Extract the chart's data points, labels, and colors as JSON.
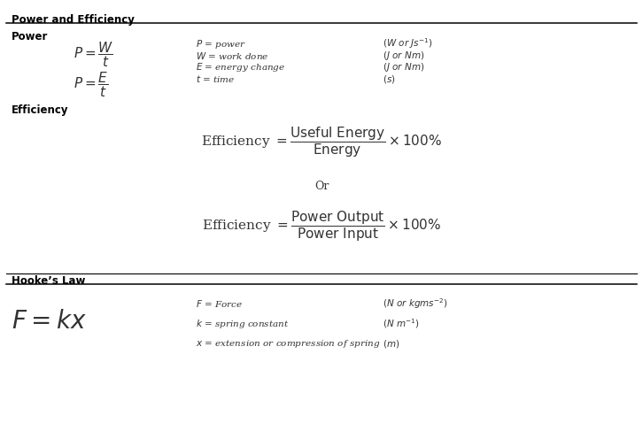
{
  "bg_color": "#ffffff",
  "text_color": "#333333",
  "bold_color": "#000000",
  "figsize": [
    7.26,
    4.96
  ],
  "dpi": 100,
  "section1_title": "Power and Efficiency",
  "section2_title": "Power",
  "section3_title": "Efficiency",
  "section4_title": "Hooke’s Law",
  "power_formula1": "$P = \\dfrac{W}{t}$",
  "power_formula2": "$P = \\dfrac{E}{t}$",
  "power_defs": [
    [
      "$P$ = power",
      "$(W\\ or\\ Js^{-1})$"
    ],
    [
      "$W$ = work done",
      "$(J\\ or\\ Nm)$"
    ],
    [
      "$E$ = energy change",
      "$(J\\ or\\ Nm)$"
    ],
    [
      "$t$ = time",
      "$(s)$"
    ]
  ],
  "eff_formula1": "Efficiency $= \\dfrac{\\mathrm{Useful\\ Energy}}{\\mathrm{Energy}} \\times100\\%$",
  "eff_or": "Or",
  "eff_formula2": "Efficiency $= \\dfrac{\\mathrm{Power\\ Output}}{\\mathrm{Power\\ Input}} \\times100\\%$",
  "hooke_formula": "$F = kx$",
  "hooke_defs": [
    [
      "$F$ = Force",
      "$(N\\ or\\ kgms^{-2})$"
    ],
    [
      "$k$ = spring constant",
      "$(N\\ m^{-1})$"
    ],
    [
      "$x$ = extension or compression of spring",
      "$(m)$"
    ]
  ]
}
